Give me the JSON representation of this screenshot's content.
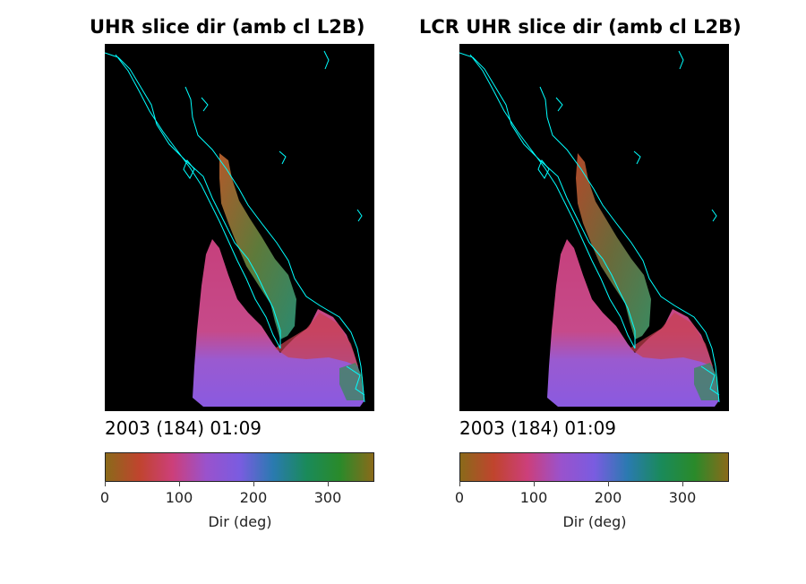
{
  "chart_data": [
    {
      "type": "heatmap",
      "title": "UHR slice dir (amb cl L2B)",
      "timestamp": "2003 (184) 01:09",
      "colorbar": {
        "label": "Dir (deg)",
        "range": [
          0,
          360
        ],
        "ticks": [
          0,
          100,
          200,
          300
        ],
        "colormap": [
          "#8a6a1a",
          "#c0442e",
          "#cc3f7a",
          "#9a52cc",
          "#7a5ce0",
          "#2a7ab0",
          "#1a8a5a",
          "#2a8a2a",
          "#8a6a1a"
        ]
      },
      "background_color": "#000000",
      "coastline_color": "#00ffff"
    },
    {
      "type": "heatmap",
      "title": "LCR UHR slice dir (amb cl L2B)",
      "timestamp": "2003 (184) 01:09",
      "colorbar": {
        "label": "Dir (deg)",
        "range": [
          0,
          360
        ],
        "ticks": [
          0,
          100,
          200,
          300
        ],
        "colormap": [
          "#8a6a1a",
          "#c0442e",
          "#cc3f7a",
          "#9a52cc",
          "#7a5ce0",
          "#2a7ab0",
          "#1a8a5a",
          "#2a8a2a",
          "#8a6a1a"
        ]
      },
      "background_color": "#000000",
      "coastline_color": "#00ffff"
    }
  ]
}
